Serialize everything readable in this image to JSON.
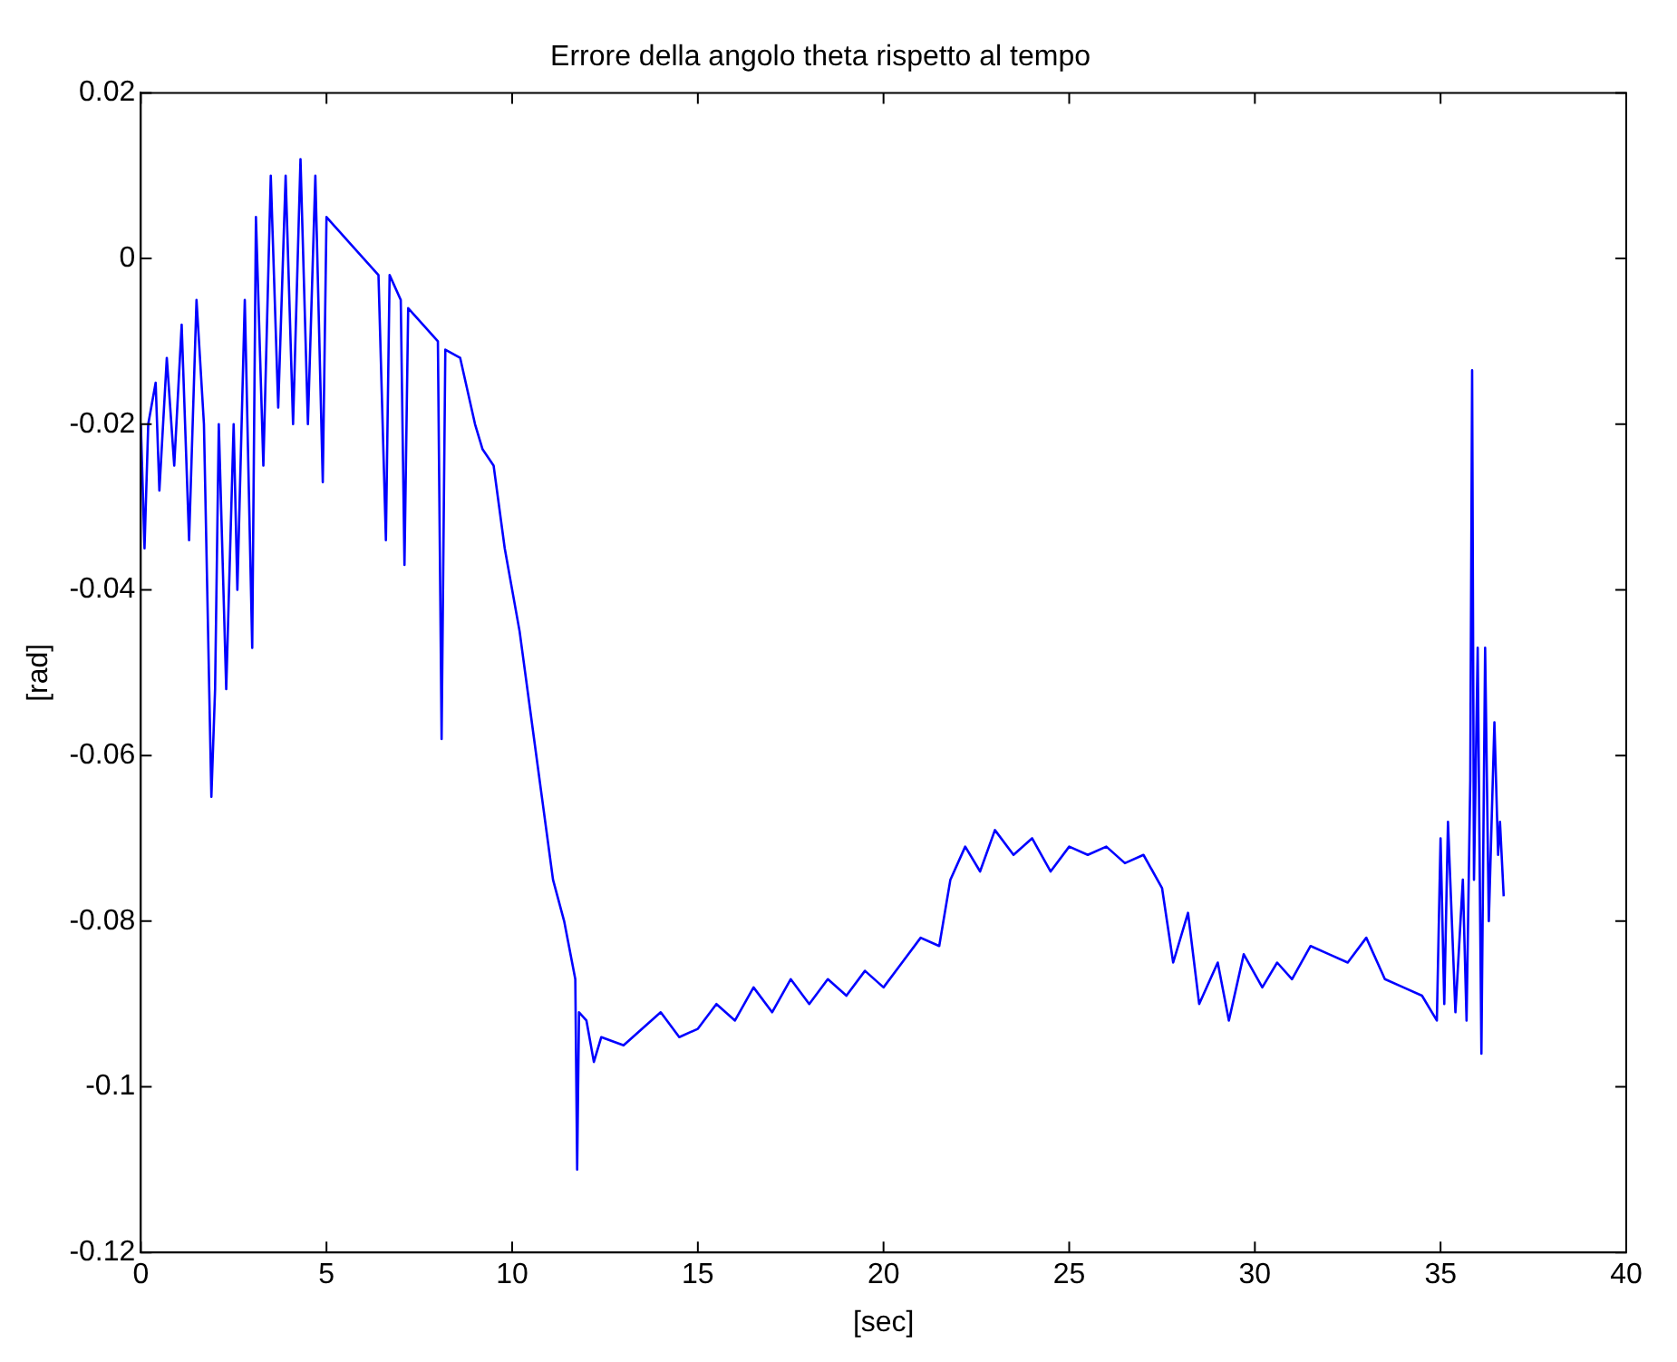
{
  "chart_data": {
    "type": "line",
    "title": "Errore della angolo theta rispetto al tempo",
    "xlabel": "[sec]",
    "ylabel": "[rad]",
    "x": [
      0,
      0.1,
      0.2,
      0.4,
      0.5,
      0.7,
      0.9,
      1.1,
      1.3,
      1.5,
      1.7,
      1.9,
      2.0,
      2.1,
      2.3,
      2.5,
      2.6,
      2.8,
      3.0,
      3.1,
      3.3,
      3.5,
      3.7,
      3.9,
      4.1,
      4.3,
      4.5,
      4.7,
      4.9,
      5.0,
      5.2,
      5.6,
      6.0,
      6.4,
      6.6,
      6.7,
      7.0,
      7.1,
      7.2,
      7.6,
      8.0,
      8.1,
      8.2,
      8.6,
      9.0,
      9.2,
      9.5,
      9.8,
      10.2,
      10.5,
      10.8,
      11.1,
      11.4,
      11.7,
      11.75,
      11.8,
      12.0,
      12.2,
      12.4,
      13,
      13.5,
      14,
      14.5,
      15,
      15.5,
      16,
      16.5,
      17,
      17.5,
      18,
      18.5,
      19,
      19.5,
      20,
      20.5,
      21,
      21.5,
      21.8,
      22.2,
      22.6,
      23,
      23.5,
      24,
      24.5,
      25,
      25.5,
      26,
      26.5,
      27,
      27.5,
      27.8,
      28.2,
      28.5,
      29,
      29.3,
      29.7,
      30.2,
      30.6,
      31,
      31.5,
      32,
      32.5,
      33,
      33.5,
      34,
      34.5,
      34.9,
      35.0,
      35.1,
      35.2,
      35.4,
      35.6,
      35.7,
      35.8,
      35.85,
      35.9,
      36.0,
      36.1,
      36.2,
      36.3,
      36.45,
      36.55,
      36.6,
      36.7
    ],
    "series": [
      {
        "color": "#0000ff",
        "values": [
          -0.02,
          -0.035,
          -0.02,
          -0.015,
          -0.028,
          -0.012,
          -0.025,
          -0.008,
          -0.034,
          -0.005,
          -0.02,
          -0.065,
          -0.052,
          -0.02,
          -0.052,
          -0.02,
          -0.04,
          -0.005,
          -0.047,
          0.005,
          -0.025,
          0.01,
          -0.018,
          0.01,
          -0.02,
          0.012,
          -0.02,
          0.01,
          -0.027,
          0.005,
          0.004,
          0.002,
          0,
          -0.002,
          -0.034,
          -0.002,
          -0.005,
          -0.037,
          -0.006,
          -0.008,
          -0.01,
          -0.058,
          -0.011,
          -0.012,
          -0.02,
          -0.023,
          -0.025,
          -0.035,
          -0.045,
          -0.055,
          -0.065,
          -0.075,
          -0.08,
          -0.087,
          -0.11,
          -0.091,
          -0.092,
          -0.097,
          -0.094,
          -0.095,
          -0.093,
          -0.091,
          -0.094,
          -0.093,
          -0.09,
          -0.092,
          -0.088,
          -0.091,
          -0.087,
          -0.09,
          -0.087,
          -0.089,
          -0.086,
          -0.088,
          -0.085,
          -0.082,
          -0.083,
          -0.075,
          -0.071,
          -0.074,
          -0.069,
          -0.072,
          -0.07,
          -0.074,
          -0.071,
          -0.072,
          -0.071,
          -0.073,
          -0.072,
          -0.076,
          -0.085,
          -0.079,
          -0.09,
          -0.085,
          -0.092,
          -0.084,
          -0.088,
          -0.085,
          -0.087,
          -0.083,
          -0.084,
          -0.085,
          -0.082,
          -0.087,
          -0.088,
          -0.089,
          -0.092,
          -0.07,
          -0.09,
          -0.068,
          -0.091,
          -0.075,
          -0.092,
          -0.063,
          -0.0135,
          -0.075,
          -0.047,
          -0.096,
          -0.047,
          -0.08,
          -0.056,
          -0.072,
          -0.068,
          -0.077
        ]
      }
    ],
    "xlim": [
      0,
      40
    ],
    "xticks": [
      0,
      5,
      10,
      15,
      20,
      25,
      30,
      35,
      40
    ],
    "ylim": [
      -0.12,
      0.02
    ],
    "yticks": [
      -0.12,
      -0.1,
      -0.08,
      -0.06,
      -0.04,
      -0.02,
      0,
      0.02
    ],
    "grid": false,
    "legend": false,
    "marker": "none",
    "line_style": "solid"
  }
}
